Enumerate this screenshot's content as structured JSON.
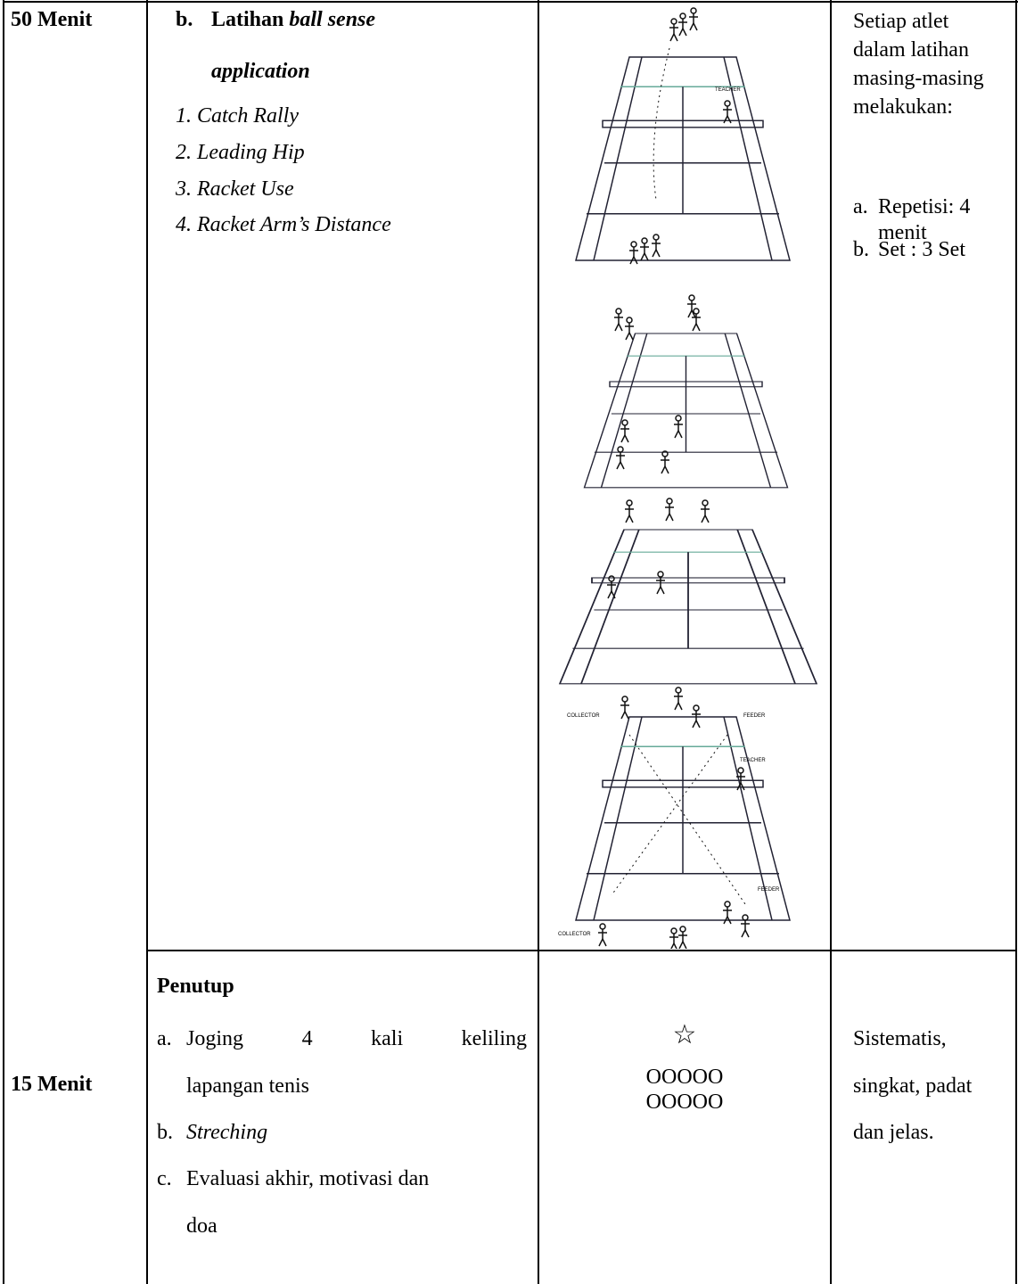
{
  "table": {
    "rows": [
      {
        "duration": "50 Menit",
        "activity": {
          "marker": "b.",
          "heading": "Latihan",
          "heading_italic": "ball sense",
          "heading_italic_2": "application",
          "items": [
            "1.  Catch Rally",
            "2.  Leading Hip",
            "3.  Racket Use",
            "4.  Racket Arm’s Distance"
          ]
        },
        "diagram_labels": [
          "TEACHER",
          "COLLECTOR",
          "FEEDER",
          "TEACHER",
          "FEEDER",
          "COLLECTOR"
        ],
        "notes": {
          "lines": [
            "Setiap atlet",
            "dalam latihan",
            "masing-masing",
            "melakukan:"
          ],
          "items": [
            {
              "marker": "a.",
              "text": "Repetisi: 4",
              "text_2": "menit"
            },
            {
              "marker": "b.",
              "text": "Set : 3 Set"
            }
          ]
        }
      },
      {
        "duration": "15 Menit",
        "activity": {
          "heading": "Penutup",
          "items": [
            {
              "marker": "a.",
              "text": "Joging 4 kali keliling",
              "text_2": "lapangan tenis"
            },
            {
              "marker": "b.",
              "text": "Streching"
            },
            {
              "marker": "c.",
              "text": "Evaluasi akhir, motivasi dan",
              "text_2": "doa"
            }
          ]
        },
        "formation": {
          "symbol": "☆",
          "lines": [
            "OOOOO",
            "OOOOO"
          ]
        },
        "notes": {
          "lines": [
            "Sistematis,",
            "singkat, padat",
            "dan jelas."
          ]
        }
      }
    ]
  }
}
